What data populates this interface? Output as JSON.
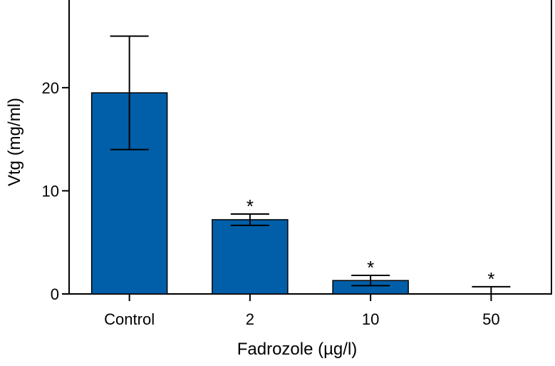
{
  "chart_data": {
    "type": "bar",
    "xlabel": "Fadrozole (µg/l)",
    "ylabel": "Vtg (mg/ml)",
    "categories": [
      "Control",
      "2",
      "10",
      "50"
    ],
    "values": [
      19.5,
      7.2,
      1.3,
      0.0
    ],
    "errors": [
      5.5,
      0.55,
      0.5,
      0.7
    ],
    "significance": [
      "",
      "*",
      "*",
      "*"
    ],
    "yticks": [
      0,
      10,
      20
    ],
    "ylim": [
      0,
      28.5
    ],
    "bar_color": "#005fa8",
    "grid": false,
    "legend": "none"
  }
}
